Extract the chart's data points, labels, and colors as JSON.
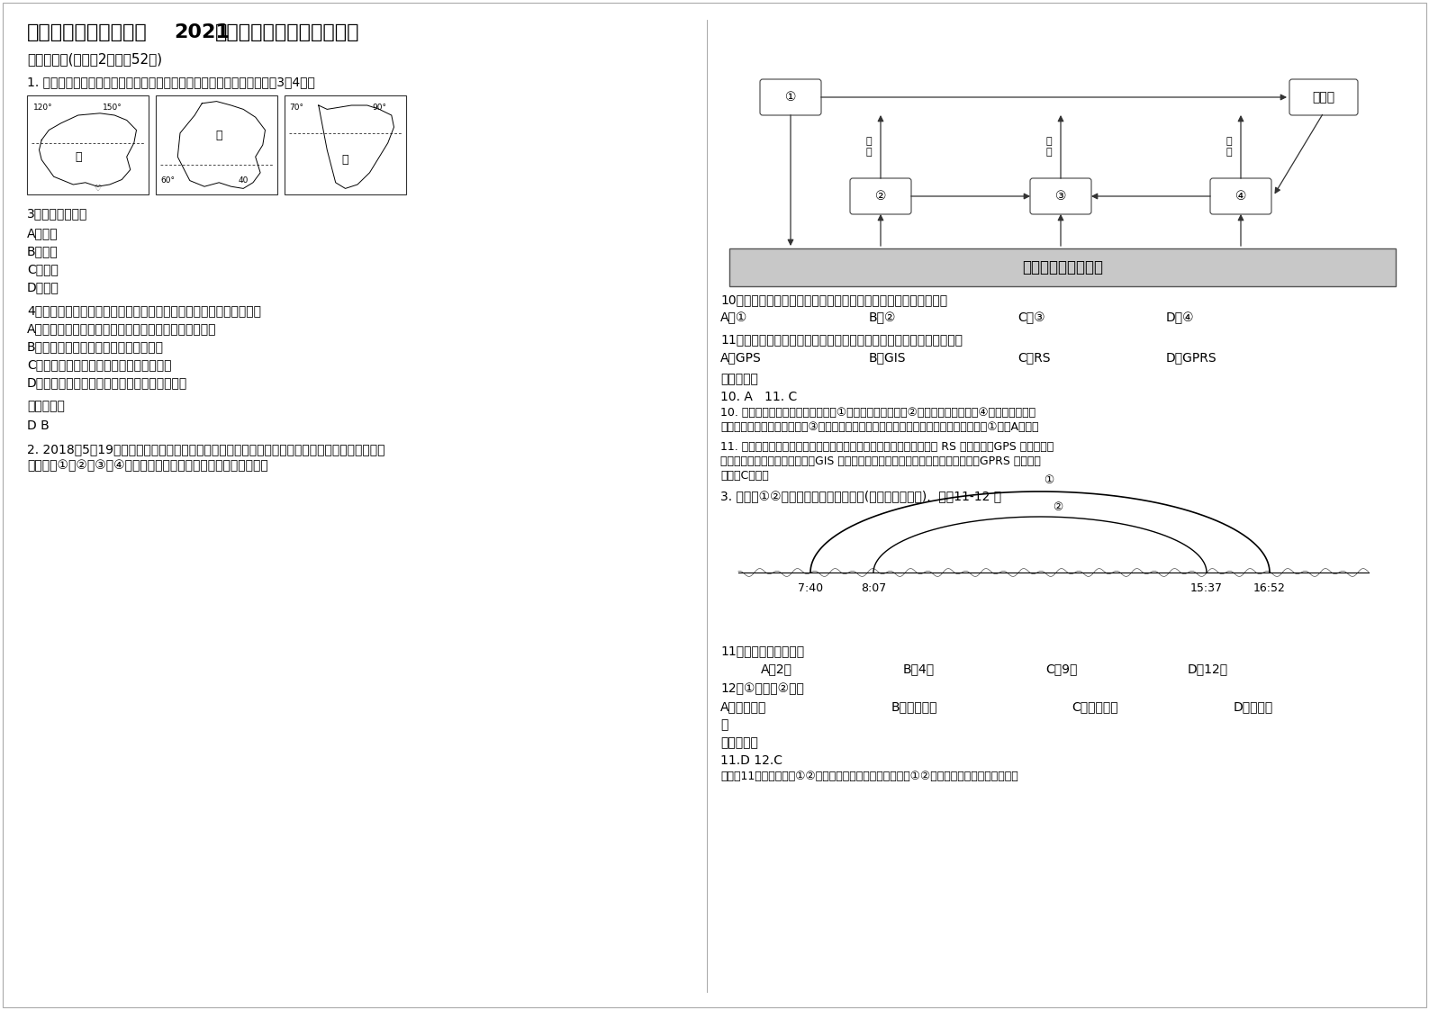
{
  "title_part1": "广东省汕头市中民学校",
  "title_2021": "2021",
  "title_part2": "年高三地理联考试卷含解析",
  "section1": "一、选择题(每小题2分，內52分)",
  "q1": "1. 下图所示甲、乙、丙三国均为世界某种矿产资源重要出口国，读图完成3～4题。",
  "q3": "3．该矿产资源是",
  "q3a": "A．铜矿",
  "q3b": "B．石油",
  "q3c": "C．煮炭",
  "q3d": "D．铁矿",
  "q4": "4．矿石运输船从丙国沿较短航线驶往意大利，沿途依次经过的海域为",
  "q4a": "A．马六甲海峡、曼德海峡、苏伊士运河、直布罗陀海峡",
  "q4b": "B．阿拉伯海、曼德海峡、红海、地中海",
  "q4c": "C．红海、亚丁湾、阿拉伯海、苏伊士运河",
  "q4d": "D．亚丁湾、霍尔木兹海峡、红海、苏伊士运河",
  "ans_header": "参考答案：",
  "ans_q34": "D B",
  "q2_line1": "2. 2018年5月19日，美国夏威夷群岛基拉韦厎火山不断喷出岩浆和火山灰。下图示意岩石圈物质循",
  "q2_line2": "环，图中①、②、③、④表示不同类型的岩石。据此完成下面小题。",
  "q10": "10．基拉韦厎火山喷出的岩浆在地表冷却凝固形成的岩石对应图中",
  "q10_opts": [
    "A．①",
    "B．②",
    "C．③",
    "D．④"
  ],
  "q11": "11．监测基拉韦厎火山喷出的火山灰扩散所运用的地理信息技术主要是",
  "q11_opts": [
    "A．GPS",
    "B．GIS",
    "C．RS",
    "D．GPRS"
  ],
  "ans_1011": "10. A   11. C",
  "ans10_line1": "10. 软流层是岩浆的出处，判断图中①是岩浆岩的喷出岩；②是岩浆岩的侵入岩；④是沉积物经固结",
  "ans10_line2": "成岩作用形成的，是沉积岩；③是变质岩；火山喷出的岩浆在地表冷却凝固形成的岩石是①，选A正确。",
  "ans11_line1": "11. 监测基拉韦厎火山喷出的火山灰扩散所运用的地理信息技术主要是 RS 遥感技术；GPS 是全球定位",
  "ans11_line2": "系统，主要是导航和定位作用；GIS 是地理信息系统，主要分析、评价、查询系统；GPRS 是通讯技",
  "ans11_line3": "术，选C正确。",
  "q3_header": "3. 读我国①②两地某日日出日落示意图(图示为北京时间),  回筄11-12 题",
  "q11b": "11．该日最有可能是在",
  "q11b_opts": [
    "A．2月",
    "B．4月",
    "C．9月",
    "D．12月"
  ],
  "q12": "12．①地位于②地的",
  "q12_opts": [
    "A．东南方向",
    "B．东北方向",
    "C．西南方向",
    "D．西北方"
  ],
  "q12_d_cont": "向",
  "ans_1112": "11.D 12.C",
  "ans_last": "解析：11题，根据我国①②两地某日日出日落示意图可知，①②两地均昼短夜长，为我国冬半"
}
